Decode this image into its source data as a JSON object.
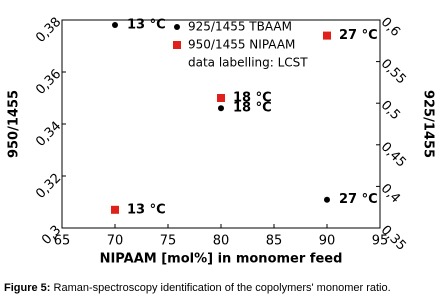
{
  "chart_data": {
    "type": "scatter",
    "x": [
      70,
      80,
      90
    ],
    "xlabel": "NIPAAM [mol%] in monomer feed",
    "ylabel": "950/1455",
    "y2label": "925/1455",
    "xlim": [
      65,
      95
    ],
    "xticks": [
      65,
      70,
      75,
      80,
      85,
      90,
      95
    ],
    "ylim": [
      0.3,
      0.38
    ],
    "yticks": [
      {
        "value": 0.3,
        "label": "0,3"
      },
      {
        "value": 0.32,
        "label": "0,32"
      },
      {
        "value": 0.34,
        "label": "0,34"
      },
      {
        "value": 0.36,
        "label": "0,36"
      },
      {
        "value": 0.38,
        "label": "0,38"
      }
    ],
    "y2lim": [
      0.35,
      0.6
    ],
    "y2ticks": [
      {
        "value": 0.35,
        "label": "0,35"
      },
      {
        "value": 0.4,
        "label": "0,4"
      },
      {
        "value": 0.45,
        "label": "0,45"
      },
      {
        "value": 0.5,
        "label": "0,5"
      },
      {
        "value": 0.55,
        "label": "0,55"
      },
      {
        "value": 0.6,
        "label": "0,6"
      }
    ],
    "series": [
      {
        "name": "925/1455 TBAAM",
        "color": "#000000",
        "marker": "circle",
        "axis": "y2",
        "values": [
          0.594,
          0.494,
          0.384
        ],
        "labels": [
          "13 °C",
          "18 °C",
          "27 °C"
        ]
      },
      {
        "name": "950/1455 NIPAAM",
        "color": "#e0201b",
        "marker": "square",
        "values": [
          0.307,
          0.35,
          0.374
        ],
        "labels": [
          "13 °C",
          "18 °C",
          "27 °C"
        ]
      }
    ],
    "legend_note": "data labelling: LCST"
  },
  "caption": {
    "label": "Figure 5:",
    "text": "Raman-spectroscopy identification of the copolymers' monomer ratio."
  }
}
